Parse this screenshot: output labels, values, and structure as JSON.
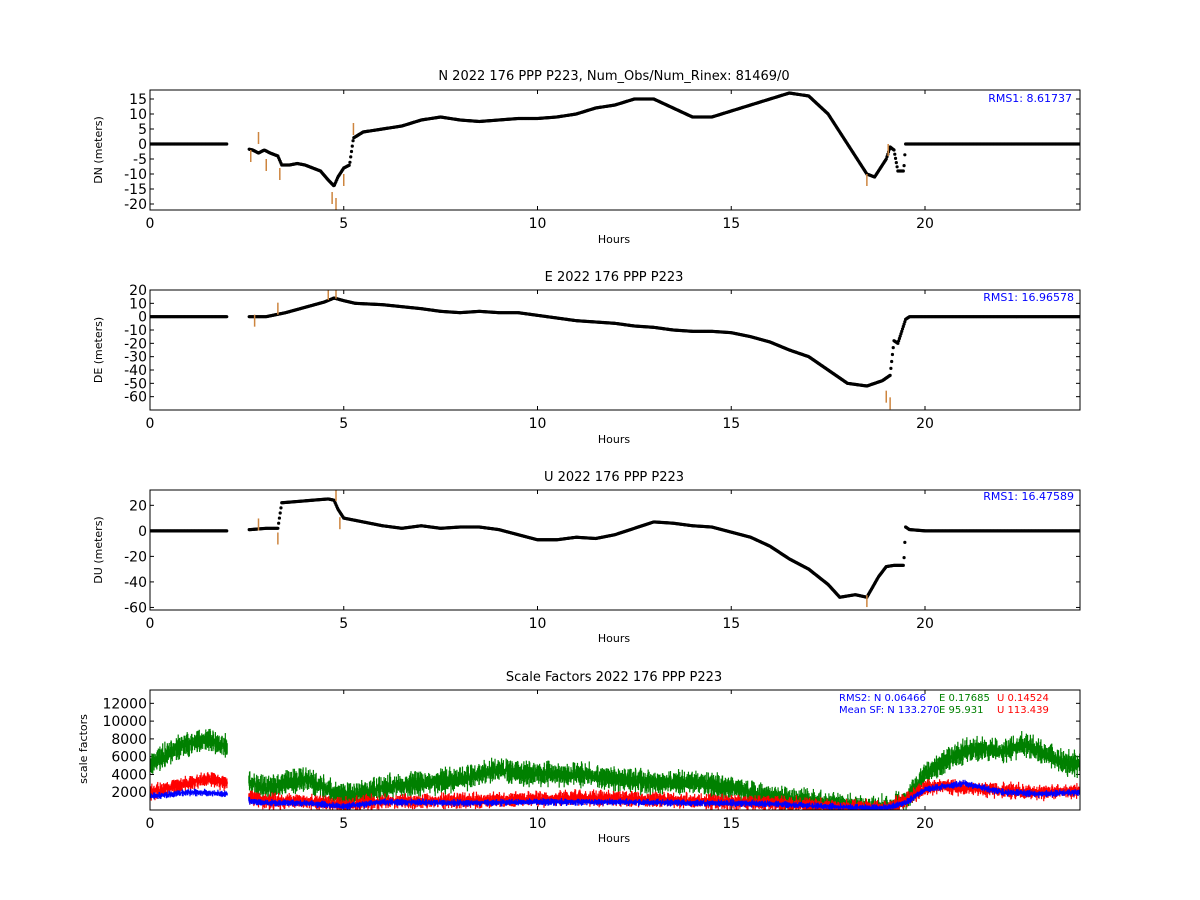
{
  "chart_data": [
    {
      "type": "scatter",
      "title": "N 2022 176 PPP  P223, Num_Obs/Num_Rinex: 81469/0",
      "xlabel": "Hours",
      "ylabel": "DN (meters)",
      "xlim": [
        0,
        24
      ],
      "ylim": [
        -22,
        18
      ],
      "xticks": [
        0,
        5,
        10,
        15,
        20
      ],
      "yticks": [
        -20,
        -15,
        -10,
        -5,
        0,
        5,
        10,
        15
      ],
      "annotation": "RMS1:  8.61737",
      "annotation_color": "#0000ff",
      "series": [
        {
          "color": "#000000",
          "x": [
            0,
            1,
            2,
            2.65,
            2.8,
            2.95,
            3.1,
            3.3,
            3.4,
            3.6,
            3.8,
            4.0,
            4.2,
            4.4,
            4.6,
            4.75,
            4.85,
            5.0,
            5.15,
            5.25,
            5.5,
            5.75,
            6.0,
            6.5,
            7.0,
            7.5,
            8.0,
            8.5,
            9.0,
            9.5,
            10.0,
            10.5,
            11.0,
            11.5,
            12.0,
            12.5,
            13.0,
            13.5,
            14.0,
            14.5,
            15.0,
            15.5,
            16.0,
            16.5,
            17.0,
            17.5,
            18.0,
            18.3,
            18.5,
            18.7,
            18.85,
            19.0,
            19.1,
            19.2,
            19.3,
            19.45,
            19.5,
            20,
            21,
            22,
            23,
            24
          ],
          "y": [
            0,
            0,
            0,
            -2,
            -3,
            -2,
            -3,
            -4,
            -7,
            -7,
            -6.5,
            -7,
            -8,
            -9,
            -12,
            -14,
            -11,
            -8,
            -7,
            2,
            4,
            4.5,
            5,
            6,
            8,
            9,
            8,
            7.5,
            8,
            8.5,
            8.5,
            9,
            10,
            12,
            13,
            15,
            15,
            12,
            9,
            9,
            11,
            13,
            15,
            17,
            16,
            10,
            0,
            -6,
            -10,
            -11,
            -8,
            -5,
            -1,
            -2,
            -9,
            -9,
            0,
            0,
            0,
            0,
            0,
            0
          ],
          "xmin": 0,
          "xmax": 24
        },
        {
          "color": "#cd853f",
          "x": [
            2.6,
            2.8,
            3.0,
            3.35,
            4.7,
            4.8,
            5.0,
            5.25,
            18.5,
            19.05
          ],
          "y": [
            -4,
            2,
            -7,
            -10,
            -18,
            -20,
            -12,
            5,
            -12,
            -2
          ]
        }
      ]
    },
    {
      "type": "scatter",
      "title": "E 2022 176 PPP  P223",
      "xlabel": "Hours",
      "ylabel": "DE (meters)",
      "xlim": [
        0,
        24
      ],
      "ylim": [
        -70,
        20
      ],
      "xticks": [
        0,
        5,
        10,
        15,
        20
      ],
      "yticks": [
        -60,
        -50,
        -40,
        -30,
        -20,
        -10,
        0,
        10,
        20
      ],
      "annotation": "RMS1: 16.96578",
      "annotation_color": "#0000ff",
      "series": [
        {
          "color": "#000000",
          "x": [
            0,
            1,
            2,
            2.6,
            3.0,
            3.5,
            4.0,
            4.5,
            4.75,
            5.0,
            5.3,
            6.0,
            7.0,
            7.5,
            8.0,
            8.5,
            9.0,
            9.5,
            10.0,
            10.5,
            11.0,
            11.5,
            12.0,
            12.5,
            13.0,
            13.5,
            14.0,
            14.5,
            15.0,
            15.5,
            16.0,
            16.5,
            17.0,
            17.5,
            18.0,
            18.5,
            18.9,
            19.1,
            19.2,
            19.3,
            19.5,
            19.6,
            20,
            21,
            22,
            23,
            24
          ],
          "y": [
            0,
            0,
            0,
            0,
            0,
            3,
            7,
            11,
            14,
            12,
            10,
            9,
            6,
            4,
            3,
            4,
            3,
            3,
            1,
            -1,
            -3,
            -4,
            -5,
            -7,
            -8,
            -10,
            -11,
            -11,
            -12,
            -15,
            -19,
            -25,
            -30,
            -40,
            -50,
            -52,
            -48,
            -44,
            -18,
            -20,
            -2,
            0,
            0,
            0,
            0,
            0,
            0
          ],
          "xmin": 0,
          "xmax": 24
        },
        {
          "color": "#cd853f",
          "x": [
            2.7,
            3.3,
            4.6,
            4.8,
            19.0,
            19.1
          ],
          "y": [
            -3,
            6,
            17,
            18,
            -60,
            -65
          ]
        }
      ]
    },
    {
      "type": "scatter",
      "title": "U 2022 176 PPP  P223",
      "xlabel": "Hours",
      "ylabel": "DU (meters)",
      "xlim": [
        0,
        24
      ],
      "ylim": [
        -62,
        32
      ],
      "xticks": [
        0,
        5,
        10,
        15,
        20
      ],
      "yticks": [
        -60,
        -40,
        -20,
        0,
        20
      ],
      "annotation": "RMS1: 16.47589",
      "annotation_color": "#0000ff",
      "series": [
        {
          "color": "#000000",
          "x": [
            0,
            1,
            2,
            2.6,
            3.0,
            3.3,
            3.4,
            3.8,
            4.2,
            4.6,
            4.75,
            4.85,
            5.0,
            5.5,
            6.0,
            6.5,
            7.0,
            7.5,
            8.0,
            8.5,
            9.0,
            9.5,
            10.0,
            10.5,
            11.0,
            11.5,
            12.0,
            12.5,
            13.0,
            13.5,
            14.0,
            14.5,
            15.0,
            15.5,
            16.0,
            16.5,
            17.0,
            17.5,
            17.8,
            18.2,
            18.5,
            18.8,
            19.0,
            19.2,
            19.45,
            19.5,
            19.6,
            20,
            21,
            22,
            23,
            24
          ],
          "y": [
            0,
            0,
            0,
            1,
            2,
            2,
            22,
            23,
            24,
            25,
            24,
            17,
            10,
            7,
            4,
            2,
            4,
            2,
            3,
            3,
            1,
            -3,
            -7,
            -7,
            -5,
            -6,
            -3,
            2,
            7,
            6,
            4,
            3,
            -1,
            -5,
            -12,
            -22,
            -30,
            -42,
            -52,
            -50,
            -52,
            -36,
            -28,
            -27,
            -27,
            3,
            1,
            0,
            0,
            0,
            0,
            0
          ],
          "xmin": 0,
          "xmax": 24
        },
        {
          "color": "#cd853f",
          "x": [
            2.8,
            3.3,
            4.8,
            4.9,
            18.5
          ],
          "y": [
            5,
            -6,
            28,
            6,
            -55
          ]
        }
      ]
    },
    {
      "type": "scatter",
      "title": "Scale Factors 2022 176 PPP  P223",
      "xlabel": "Hours",
      "ylabel": "scale factors",
      "xlim": [
        0,
        24
      ],
      "ylim": [
        0,
        13500
      ],
      "xticks": [
        0,
        5,
        10,
        15,
        20
      ],
      "yticks": [
        2000,
        4000,
        6000,
        8000,
        10000,
        12000
      ],
      "annotation_lines": [
        [
          {
            "text": "RMS2: N  0.06466",
            "color": "#0000ff"
          },
          {
            "text": "E  0.17685",
            "color": "#008000"
          },
          {
            "text": "U  0.14524",
            "color": "#ff0000"
          }
        ],
        [
          {
            "text": "Mean SF: N 133.270",
            "color": "#0000ff"
          },
          {
            "text": "E  95.931",
            "color": "#008000"
          },
          {
            "text": "U 113.439",
            "color": "#ff0000"
          }
        ]
      ],
      "series": [
        {
          "color": "#008000",
          "x": [
            0,
            0.5,
            1.0,
            1.5,
            2.0,
            2.6,
            3.0,
            3.5,
            4.0,
            4.5,
            5.0,
            5.5,
            6.0,
            7.0,
            8.0,
            9.0,
            10.0,
            11.0,
            12.0,
            13.0,
            14.0,
            15.0,
            16.0,
            17.0,
            18.0,
            19.0,
            19.5,
            20.0,
            20.5,
            21.0,
            21.5,
            22.0,
            22.5,
            23.0,
            23.5,
            24.0
          ],
          "y": [
            5000,
            6500,
            7500,
            8000,
            7000,
            3000,
            2500,
            3000,
            3500,
            2500,
            1500,
            2000,
            2500,
            3000,
            3500,
            4500,
            4000,
            4000,
            3500,
            3000,
            3200,
            2500,
            1500,
            1000,
            500,
            300,
            1000,
            4000,
            5500,
            6500,
            7000,
            6500,
            7500,
            6500,
            5500,
            5000
          ],
          "band": 1400,
          "xmin": 0,
          "xmax": 24
        },
        {
          "color": "#ff0000",
          "x": [
            0,
            1.0,
            1.5,
            2.0,
            2.6,
            3.0,
            4.0,
            5.0,
            6.0,
            8.0,
            10.0,
            11.0,
            12.0,
            13.0,
            14.0,
            15.0,
            16.0,
            17.0,
            18.0,
            19.0,
            19.5,
            20.0,
            20.5,
            21.0,
            22.0,
            23.0,
            24.0
          ],
          "y": [
            2000,
            3000,
            3500,
            3000,
            1500,
            1000,
            1000,
            500,
            1000,
            1000,
            1200,
            1400,
            1300,
            1200,
            1000,
            900,
            800,
            500,
            300,
            200,
            1000,
            2500,
            2700,
            2500,
            2200,
            2000,
            2200
          ],
          "band": 900,
          "xmin": 0,
          "xmax": 24
        },
        {
          "color": "#0000ff",
          "x": [
            0,
            1.0,
            2.0,
            2.6,
            3.0,
            4.0,
            5.0,
            6.0,
            8.0,
            10.0,
            12.0,
            14.0,
            16.0,
            18.0,
            19.0,
            19.5,
            20.0,
            21.0,
            22.0,
            23.0,
            24.0
          ],
          "y": [
            1500,
            2000,
            1800,
            1000,
            800,
            800,
            400,
            900,
            800,
            900,
            900,
            800,
            700,
            300,
            200,
            800,
            2300,
            3000,
            2000,
            1800,
            2000
          ],
          "band": 400,
          "xmin": 0,
          "xmax": 24
        }
      ]
    }
  ]
}
